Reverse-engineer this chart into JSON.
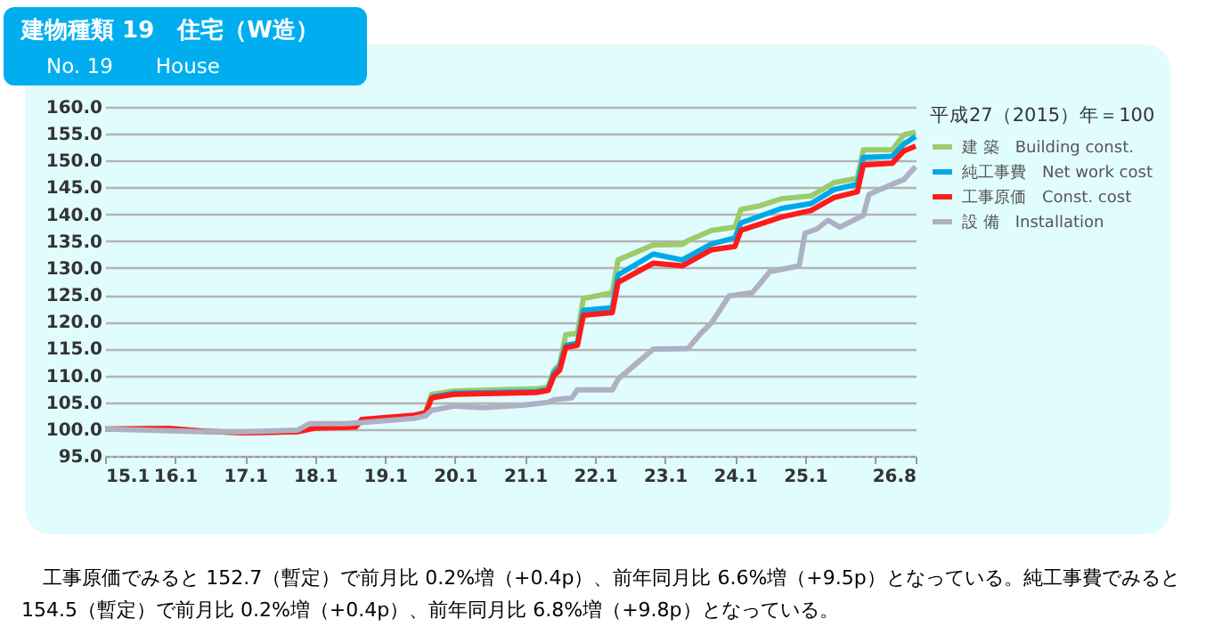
{
  "chart_data": {
    "type": "line",
    "title": "建物種類 19　住宅（W造）",
    "subtitle": "No. 19　　House",
    "legend_title": "平成27（2015）年＝100",
    "annotations": [
      "工事原価でみると 152.7（暫定）で前月比 0.2%増（+0.4p）、前年同月比 6.6%増（+9.5p）となっている。純工事費でみると 154.5（暫定）で前月比 0.2%増（+0.4p）、前年同月比 6.8%増（+9.8p）となっている。"
    ],
    "xlim": [
      "2015-01",
      "2026-08"
    ],
    "xticks": [
      {
        "value": "2015-01",
        "label": "15.1"
      },
      {
        "value": "2016-01",
        "label": "16.1"
      },
      {
        "value": "2017-01",
        "label": "17.1"
      },
      {
        "value": "2018-01",
        "label": "18.1"
      },
      {
        "value": "2019-01",
        "label": "19.1"
      },
      {
        "value": "2020-01",
        "label": "20.1"
      },
      {
        "value": "2021-01",
        "label": "21.1"
      },
      {
        "value": "2022-01",
        "label": "22.1"
      },
      {
        "value": "2023-01",
        "label": "23.1"
      },
      {
        "value": "2024-01",
        "label": "24.1"
      },
      {
        "value": "2025-01",
        "label": "25.1"
      },
      {
        "value": "2026-01",
        "label": null
      },
      {
        "value": "2026-08",
        "label": "26.8"
      }
    ],
    "ylim": [
      95,
      160
    ],
    "yticks": [
      {
        "value": 95,
        "label": "95.0"
      },
      {
        "value": 100,
        "label": "100.0"
      },
      {
        "value": 105,
        "label": "105.0"
      },
      {
        "value": 110,
        "label": "110.0"
      },
      {
        "value": 115,
        "label": "115.0"
      },
      {
        "value": 120,
        "label": "120.0"
      },
      {
        "value": 125,
        "label": "125.0"
      },
      {
        "value": 130,
        "label": "130.0"
      },
      {
        "value": 135,
        "label": "135.0"
      },
      {
        "value": 140,
        "label": "140.0"
      },
      {
        "value": 145,
        "label": "145.0"
      },
      {
        "value": 150,
        "label": "150.0"
      },
      {
        "value": 155,
        "label": "155.0"
      },
      {
        "value": 160,
        "label": "160.0"
      }
    ],
    "grid": "y",
    "legend": "right",
    "marker": "none",
    "line_style": "solid",
    "series": [
      {
        "name": "建 築　Building const.",
        "color": "#9dcb6b",
        "x": [
          "2015-01",
          "2015-12",
          "2016-06",
          "2017-01",
          "2017-10",
          "2018-01",
          "2018-08",
          "2018-09",
          "2019-06",
          "2019-08",
          "2019-09",
          "2020-01",
          "2021-03",
          "2021-05",
          "2021-06",
          "2021-07",
          "2021-08",
          "2021-10",
          "2021-11",
          "2022-04",
          "2022-05",
          "2022-11",
          "2023-04",
          "2023-05",
          "2023-09",
          "2024-01",
          "2024-02",
          "2024-05",
          "2024-09",
          "2025-02",
          "2025-06",
          "2025-10",
          "2025-11",
          "2026-04",
          "2026-06",
          "2026-08"
        ],
        "values": [
          100.0,
          100.2,
          99.6,
          99.3,
          99.5,
          100.2,
          100.4,
          101.6,
          102.5,
          103.2,
          106.5,
          107.1,
          107.5,
          107.8,
          111.0,
          112.1,
          117.6,
          117.8,
          124.3,
          125.4,
          131.5,
          134.3,
          134.4,
          135.1,
          137.0,
          137.6,
          140.9,
          141.5,
          142.9,
          143.4,
          145.9,
          146.7,
          152.0,
          152.0,
          154.8,
          155.3
        ]
      },
      {
        "name": "純工事費　Net work cost",
        "color": "#00a8e8",
        "x": [
          "2019-09",
          "2020-01",
          "2021-03",
          "2021-05",
          "2021-06",
          "2021-07",
          "2021-08",
          "2021-10",
          "2021-11",
          "2022-04",
          "2022-05",
          "2022-11",
          "2023-04",
          "2023-09",
          "2024-01",
          "2024-02",
          "2024-09",
          "2025-02",
          "2025-06",
          "2025-10",
          "2025-11",
          "2026-04",
          "2026-06",
          "2026-08"
        ],
        "values": [
          106.0,
          106.7,
          107.0,
          107.4,
          110.5,
          111.6,
          115.6,
          116.0,
          122.1,
          122.6,
          128.7,
          132.6,
          131.5,
          134.5,
          135.6,
          138.4,
          141.1,
          142.0,
          144.6,
          145.6,
          150.6,
          150.8,
          153.1,
          154.5
        ]
      },
      {
        "name": "工事原価　Const. cost",
        "color": "#ff1a1a",
        "x": [
          "2015-01",
          "2015-12",
          "2016-06",
          "2017-01",
          "2017-10",
          "2018-01",
          "2018-08",
          "2018-09",
          "2019-06",
          "2019-08",
          "2019-09",
          "2020-01",
          "2021-03",
          "2021-05",
          "2021-06",
          "2021-07",
          "2021-08",
          "2021-10",
          "2021-11",
          "2022-04",
          "2022-05",
          "2022-11",
          "2023-04",
          "2023-09",
          "2024-01",
          "2024-02",
          "2024-09",
          "2025-02",
          "2025-06",
          "2025-10",
          "2025-11",
          "2026-04",
          "2026-06",
          "2026-08"
        ],
        "values": [
          100.0,
          100.1,
          99.6,
          99.3,
          99.5,
          100.2,
          100.4,
          101.8,
          102.6,
          103.0,
          105.8,
          106.5,
          106.8,
          107.2,
          110.0,
          111.0,
          115.2,
          115.6,
          121.2,
          121.7,
          127.3,
          130.9,
          130.4,
          133.4,
          134.0,
          137.0,
          139.5,
          140.7,
          143.1,
          144.2,
          149.2,
          149.5,
          151.8,
          152.7
        ]
      },
      {
        "name": "設 備　Installation",
        "color": "#aeb0c4",
        "x": [
          "2015-01",
          "2016-06",
          "2017-01",
          "2017-10",
          "2017-12",
          "2018-06",
          "2018-09",
          "2019-06",
          "2019-08",
          "2019-09",
          "2020-01",
          "2020-06",
          "2021-01",
          "2021-05",
          "2021-06",
          "2021-09",
          "2021-10",
          "2022-04",
          "2022-05",
          "2022-08",
          "2022-11",
          "2023-05",
          "2023-07",
          "2023-09",
          "2023-12",
          "2024-04",
          "2024-07",
          "2024-12",
          "2025-01",
          "2025-03",
          "2025-05",
          "2025-07",
          "2025-11",
          "2025-12",
          "2026-03",
          "2026-06",
          "2026-08"
        ],
        "values": [
          100.0,
          99.5,
          99.5,
          99.8,
          101.0,
          101.0,
          101.2,
          102.0,
          102.5,
          103.5,
          104.3,
          104.0,
          104.5,
          105.0,
          105.5,
          105.8,
          107.3,
          107.3,
          109.3,
          112.1,
          114.9,
          115.0,
          117.6,
          119.8,
          124.8,
          125.4,
          129.3,
          130.4,
          136.5,
          137.2,
          138.9,
          137.6,
          139.8,
          143.7,
          145.1,
          146.5,
          148.9
        ]
      }
    ]
  }
}
